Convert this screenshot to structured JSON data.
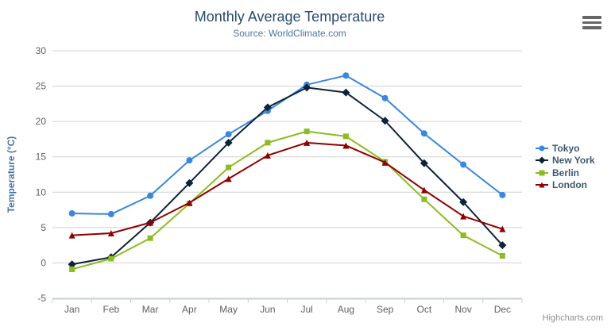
{
  "header": {
    "title": "Monthly Average Temperature",
    "subtitle": "Source: WorldClimate.com"
  },
  "menu": {
    "icon": "hamburger-icon"
  },
  "credits": {
    "label": "Highcharts.com"
  },
  "chart_data": {
    "type": "line",
    "title": "Monthly Average Temperature",
    "subtitle": "Source: WorldClimate.com",
    "categories": [
      "Jan",
      "Feb",
      "Mar",
      "Apr",
      "May",
      "Jun",
      "Jul",
      "Aug",
      "Sep",
      "Oct",
      "Nov",
      "Dec"
    ],
    "series": [
      {
        "name": "Tokyo",
        "color": "#3a87dd",
        "marker": "circle",
        "values": [
          7.0,
          6.9,
          9.5,
          14.5,
          18.2,
          21.5,
          25.2,
          26.5,
          23.3,
          18.3,
          13.9,
          9.6
        ]
      },
      {
        "name": "New York",
        "color": "#0d233a",
        "marker": "diamond",
        "values": [
          -0.2,
          0.8,
          5.7,
          11.3,
          17.0,
          22.0,
          24.8,
          24.1,
          20.1,
          14.1,
          8.6,
          2.5
        ]
      },
      {
        "name": "Berlin",
        "color": "#8bbc21",
        "marker": "square",
        "values": [
          -0.9,
          0.6,
          3.5,
          8.4,
          13.5,
          17.0,
          18.6,
          17.9,
          14.3,
          9.0,
          3.9,
          1.0
        ]
      },
      {
        "name": "London",
        "color": "#910000",
        "marker": "triangle",
        "values": [
          3.9,
          4.2,
          5.7,
          8.5,
          11.9,
          15.2,
          17.0,
          16.6,
          14.2,
          10.3,
          6.6,
          4.8
        ]
      }
    ],
    "xlabel": "",
    "ylabel": "Temperature (°C)",
    "ylim": [
      -5,
      30
    ],
    "ytick_interval": 5,
    "grid": true,
    "legend_position": "right",
    "colors": {
      "grid": "#d0d0d0",
      "axis_line": "#c0d0e0",
      "tick": "#c0d0e0",
      "axis_label": "#606060",
      "axis_title": "#4572a7",
      "title": "#274b6d",
      "subtitle": "#4d759e",
      "legend_text": "#3e576f",
      "credits": "#909090"
    }
  }
}
